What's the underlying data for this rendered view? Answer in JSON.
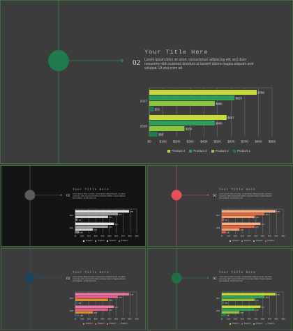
{
  "slide": {
    "title": "Your Title Here",
    "number": "02",
    "body": "Lorem ipsum dolor sit amet, consectetuer adipiscing elit, sed diam nonummy nibh euismod tincidunt ut laoreet dolore magna aliquam erat volutpat. Ut wisi enim ad"
  },
  "chart_data": {
    "type": "bar",
    "orientation": "horizontal",
    "categories": [
      "2016",
      "2017"
    ],
    "xticks": [
      "$0",
      "$100",
      "$200",
      "$300",
      "$400",
      "$500",
      "$600",
      "$700",
      "$800",
      "$900"
    ],
    "xlim": [
      0,
      900
    ],
    "grid": true,
    "legend_position": "bottom",
    "series": [
      {
        "name": "Product 1",
        "values": [
          60,
          33
        ]
      },
      {
        "name": "Product 2",
        "values": [
          258,
          480
        ]
      },
      {
        "name": "Product 3",
        "values": [
          480,
          625
        ]
      },
      {
        "name": "Product 4",
        "values": [
          567,
          788
        ]
      }
    ],
    "data_labels": {
      "2016": [
        "$60",
        "$258",
        "$480",
        "$567"
      ],
      "2017": [
        "$33",
        "$480",
        "$625",
        "$788"
      ]
    }
  },
  "themes": [
    {
      "name": "green",
      "bg": "#3c3c3c",
      "accent": "#1f7a4c",
      "line": "#2f7d4f",
      "colors": [
        "#1f7a4c",
        "#8cc63f",
        "#2e9f58",
        "#c7dc3b"
      ]
    },
    {
      "name": "black",
      "bg": "#141414",
      "accent": "#5a5a5a",
      "line": "#5a5a5a",
      "colors": [
        "#7a7a7a",
        "#cfcfcf",
        "#9a9a9a",
        "#e6e6e6"
      ]
    },
    {
      "name": "red",
      "bg": "#3c3c3c",
      "accent": "#e2505c",
      "line": "#c94550",
      "colors": [
        "#e2505c",
        "#f0a070",
        "#e8643c",
        "#f7b28a"
      ]
    },
    {
      "name": "navy",
      "bg": "#3c3c3c",
      "accent": "#1d4560",
      "line": "#25506e",
      "colors": [
        "#2b5a7a",
        "#e08a2a",
        "#e45a8a",
        "#f07aa8"
      ]
    },
    {
      "name": "green2",
      "bg": "#3c3c3c",
      "accent": "#1f6e46",
      "line": "#2f7d4f",
      "colors": [
        "#1f7a4c",
        "#8cc63f",
        "#2e9f58",
        "#c7dc3b"
      ]
    }
  ]
}
